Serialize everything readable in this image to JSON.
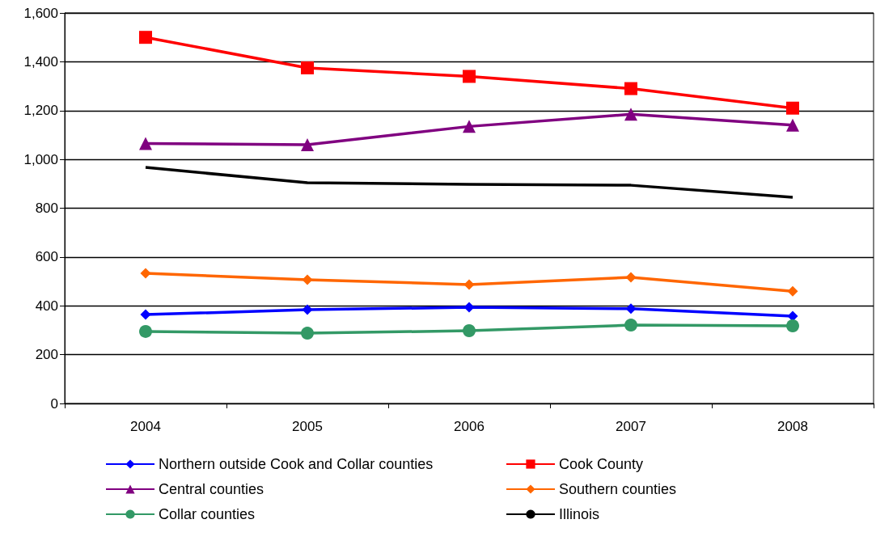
{
  "chart_data": {
    "type": "line",
    "categories": [
      "2004",
      "2005",
      "2006",
      "2007",
      "2008"
    ],
    "ylim": [
      0,
      1600
    ],
    "yticks": [
      0,
      200,
      400,
      600,
      800,
      {
        "value": 1000,
        "label": "1,000"
      },
      {
        "value": 1200,
        "label": "1,200"
      },
      {
        "value": 1400,
        "label": "1,400"
      },
      {
        "value": 1600,
        "label": "1,600"
      }
    ],
    "grid": "y",
    "legend": "bottom",
    "series": [
      {
        "name": "Northern outside Cook and Collar counties",
        "color": "#0000ff",
        "marker": "diamond",
        "values": [
          364,
          384,
          394,
          388,
          358
        ]
      },
      {
        "name": "Cook County",
        "color": "#ff0000",
        "marker": "square",
        "values": [
          1500,
          1375,
          1340,
          1290,
          1210
        ]
      },
      {
        "name": "Central counties",
        "color": "#800080",
        "marker": "triangle",
        "values": [
          1065,
          1060,
          1135,
          1185,
          1140
        ]
      },
      {
        "name": "Southern counties",
        "color": "#ff6600",
        "marker": "diamond",
        "values": [
          533,
          507,
          487,
          517,
          460
        ]
      },
      {
        "name": "Collar counties",
        "color": "#339966",
        "marker": "circle",
        "values": [
          295,
          288,
          298,
          321,
          318
        ]
      },
      {
        "name": "Illinois",
        "color": "#000000",
        "marker": "none",
        "values": [
          967,
          904,
          898,
          894,
          845
        ]
      }
    ]
  }
}
